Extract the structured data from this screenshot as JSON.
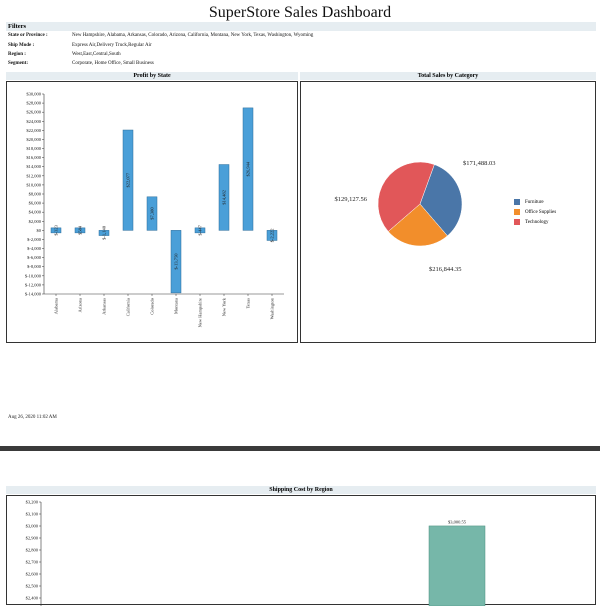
{
  "title": "SuperStore Sales Dashboard",
  "filters": {
    "heading": "Filters",
    "rows": [
      {
        "label": "State or Province :",
        "value": "New Hampshire, Alabama, Arkansas, Colorado, Arizona, California, Montana, New York, Texas, Washington, Wyoming"
      },
      {
        "label": "Ship Mode :",
        "value": "Express Air,Delivery Truck,Regular Air"
      },
      {
        "label": "Region :",
        "value": "West,East,Central,South"
      },
      {
        "label": "Segment:",
        "value": "Corporate, Home Office, Small Business"
      }
    ]
  },
  "timestamp": "Aug 26, 2020 11:02 AM",
  "colors": {
    "bar_blue": "#4a9fd8",
    "furniture": "#4a76a8",
    "office": "#f28e2b",
    "technology": "#e15759",
    "teal": "#76b7a9"
  },
  "chart_data": [
    {
      "type": "bar",
      "title": "Profit by State",
      "categories": [
        "Alabama",
        "Arizona",
        "Arkansas",
        "California",
        "Colorado",
        "Montana",
        "New Hampshire",
        "New York",
        "Texas",
        "Washington"
      ],
      "values": [
        -323,
        584,
        -1140,
        22077,
        7380,
        -13750,
        -447,
        14482,
        26944,
        -2222
      ],
      "labels": [
        "$-323",
        "$584",
        "$-1,140",
        "$22,077",
        "$7,380",
        "$-13,750",
        "$-447",
        "$14,482",
        "$26,944",
        "$-2,222"
      ],
      "ylim": [
        -14000,
        30000
      ],
      "yticks": [
        "$30,000",
        "$28,000",
        "$26,000",
        "$24,000",
        "$22,000",
        "$20,000",
        "$18,000",
        "$16,000",
        "$14,000",
        "$12,000",
        "$10,000",
        "$8,000",
        "$6,000",
        "$4,000",
        "$2,000",
        "$0",
        "$-2,000",
        "$-4,000",
        "$-6,000",
        "$-8,000",
        "$-10,000",
        "$-12,000",
        "$-14,000"
      ],
      "ytick_values": [
        30000,
        28000,
        26000,
        24000,
        22000,
        20000,
        18000,
        16000,
        14000,
        12000,
        10000,
        8000,
        6000,
        4000,
        2000,
        0,
        -2000,
        -4000,
        -6000,
        -8000,
        -10000,
        -12000,
        -14000
      ]
    },
    {
      "type": "pie",
      "title": "Total Sales by Category",
      "categories": [
        "Furniture",
        "Office Supplies",
        "Technology"
      ],
      "values": [
        171488.03,
        129127.56,
        216844.35
      ],
      "labels": [
        "$171,488.03",
        "$129,127.56",
        "$216,844.35"
      ]
    },
    {
      "type": "bar",
      "title": "Shipping Cost by Region",
      "yticks": [
        "$3,200",
        "$3,100",
        "$3,000",
        "$2,900",
        "$2,800",
        "$2,700",
        "$2,600",
        "$2,500",
        "$2,400"
      ],
      "ytick_values": [
        3200,
        3100,
        3000,
        2900,
        2800,
        2700,
        2600,
        2500,
        2400
      ],
      "ylim": [
        2400,
        3200
      ],
      "values": [
        3000.55
      ],
      "labels": [
        "$3,000.55"
      ]
    }
  ]
}
